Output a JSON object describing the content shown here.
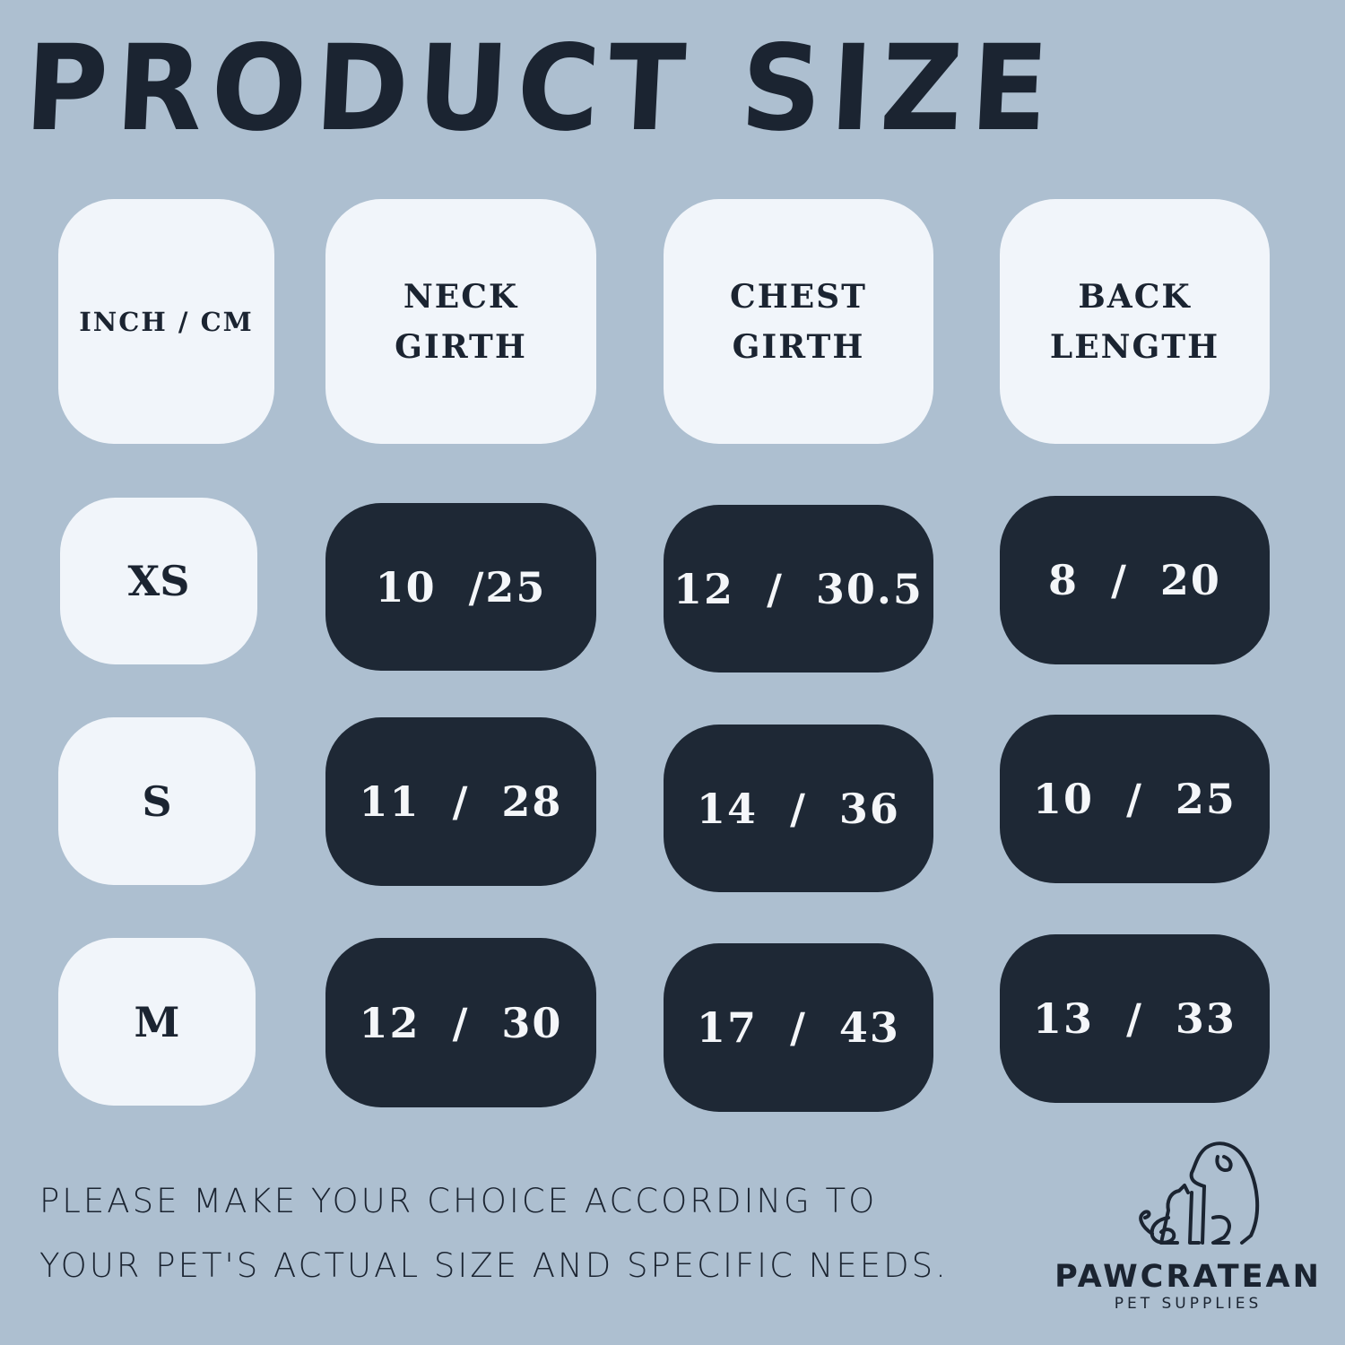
{
  "title": "PRODUCT SIZE",
  "table": {
    "headers": [
      "INCH / CM",
      "NECK\nGIRTH",
      "CHEST\nGIRTH",
      "BACK\nLENGTH"
    ],
    "rows": [
      {
        "size": "XS",
        "neck": "10  /25",
        "chest": "12  /  30.5",
        "back": "8  /  20"
      },
      {
        "size": "S",
        "neck": "11  /  28",
        "chest": "14  /  36",
        "back": "10  /  25"
      },
      {
        "size": "M",
        "neck": "12  /  30",
        "chest": "17  /  43",
        "back": "13  /  33"
      }
    ]
  },
  "note": {
    "line1": "PLEASE MAKE YOUR CHOICE ACCORDING TO",
    "line2": "YOUR PET'S ACTUAL SIZE AND SPECIFIC NEEDS."
  },
  "logo": {
    "brand": "PAWCRATEAN",
    "tagline": "PET SUPPLIES",
    "icon": "dog-and-cat-outline-icon"
  },
  "colors": {
    "background": "#adbfd0",
    "dark_cell": "#1e2835",
    "light_cell": "#f1f5fa",
    "text": "#1b2431"
  }
}
